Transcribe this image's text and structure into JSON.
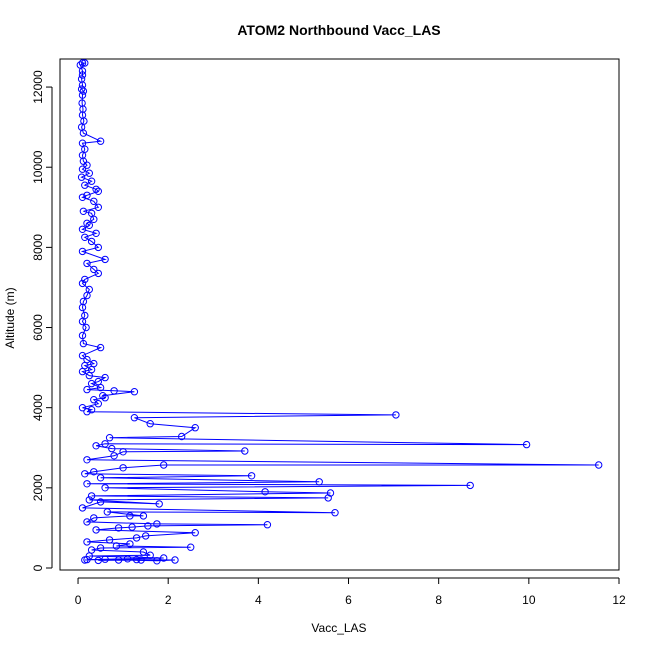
{
  "chart_data": {
    "type": "scatter",
    "title": "ATOM2 Northbound Vacc_LAS",
    "xlabel": "Vacc_LAS",
    "ylabel": "Altitude (m)",
    "xlim": [
      -0.4,
      12
    ],
    "ylim": [
      -50,
      12700
    ],
    "xticks": [
      0,
      2,
      4,
      6,
      8,
      10,
      12
    ],
    "yticks": [
      0,
      2000,
      4000,
      6000,
      8000,
      10000,
      12000
    ],
    "grid": false,
    "legend": "none",
    "color": "#0000ff",
    "series": [
      {
        "points": [
          [
            0.1,
            12600
          ],
          [
            0.15,
            12600
          ],
          [
            0.05,
            12550
          ],
          [
            0.1,
            12400
          ],
          [
            0.1,
            12300
          ],
          [
            0.08,
            12200
          ],
          [
            0.1,
            12050
          ],
          [
            0.08,
            11950
          ],
          [
            0.12,
            11900
          ],
          [
            0.1,
            11800
          ],
          [
            0.09,
            11600
          ],
          [
            0.11,
            11450
          ],
          [
            0.1,
            11300
          ],
          [
            0.13,
            11150
          ],
          [
            0.08,
            11000
          ],
          [
            0.12,
            10850
          ],
          [
            0.5,
            10650
          ],
          [
            0.1,
            10600
          ],
          [
            0.15,
            10450
          ],
          [
            0.1,
            10300
          ],
          [
            0.12,
            10150
          ],
          [
            0.2,
            10050
          ],
          [
            0.1,
            9950
          ],
          [
            0.25,
            9850
          ],
          [
            0.08,
            9750
          ],
          [
            0.3,
            9650
          ],
          [
            0.15,
            9550
          ],
          [
            0.4,
            9450
          ],
          [
            0.45,
            9400
          ],
          [
            0.2,
            9300
          ],
          [
            0.1,
            9250
          ],
          [
            0.35,
            9150
          ],
          [
            0.45,
            9000
          ],
          [
            0.12,
            8900
          ],
          [
            0.3,
            8850
          ],
          [
            0.35,
            8700
          ],
          [
            0.2,
            8600
          ],
          [
            0.25,
            8550
          ],
          [
            0.1,
            8450
          ],
          [
            0.4,
            8350
          ],
          [
            0.15,
            8250
          ],
          [
            0.3,
            8150
          ],
          [
            0.45,
            8000
          ],
          [
            0.1,
            7900
          ],
          [
            0.6,
            7700
          ],
          [
            0.2,
            7600
          ],
          [
            0.35,
            7450
          ],
          [
            0.45,
            7350
          ],
          [
            0.15,
            7200
          ],
          [
            0.1,
            7100
          ],
          [
            0.25,
            6950
          ],
          [
            0.2,
            6800
          ],
          [
            0.12,
            6650
          ],
          [
            0.1,
            6500
          ],
          [
            0.15,
            6300
          ],
          [
            0.1,
            6150
          ],
          [
            0.18,
            6000
          ],
          [
            0.1,
            5800
          ],
          [
            0.12,
            5600
          ],
          [
            0.5,
            5500
          ],
          [
            0.1,
            5300
          ],
          [
            0.2,
            5200
          ],
          [
            0.35,
            5100
          ],
          [
            0.15,
            5050
          ],
          [
            0.3,
            4950
          ],
          [
            0.1,
            4900
          ],
          [
            0.25,
            4800
          ],
          [
            0.6,
            4750
          ],
          [
            0.45,
            4650
          ],
          [
            0.3,
            4600
          ],
          [
            0.5,
            4500
          ],
          [
            0.2,
            4450
          ],
          [
            0.8,
            4420
          ],
          [
            1.25,
            4400
          ],
          [
            0.55,
            4300
          ],
          [
            0.6,
            4250
          ],
          [
            0.35,
            4200
          ],
          [
            0.45,
            4100
          ],
          [
            0.1,
            4000
          ],
          [
            0.3,
            3950
          ],
          [
            0.2,
            3900
          ],
          [
            7.05,
            3820
          ],
          [
            1.25,
            3750
          ],
          [
            1.6,
            3600
          ],
          [
            2.6,
            3500
          ],
          [
            2.3,
            3280
          ],
          [
            0.7,
            3250
          ],
          [
            9.95,
            3080
          ],
          [
            0.6,
            3100
          ],
          [
            0.4,
            3050
          ],
          [
            0.75,
            2980
          ],
          [
            3.7,
            2920
          ],
          [
            1.0,
            2900
          ],
          [
            0.8,
            2800
          ],
          [
            0.2,
            2700
          ],
          [
            11.55,
            2570
          ],
          [
            1.9,
            2570
          ],
          [
            1.0,
            2500
          ],
          [
            0.35,
            2400
          ],
          [
            0.15,
            2350
          ],
          [
            3.85,
            2300
          ],
          [
            0.5,
            2250
          ],
          [
            5.35,
            2150
          ],
          [
            0.2,
            2100
          ],
          [
            8.7,
            2060
          ],
          [
            0.6,
            2000
          ],
          [
            4.15,
            1900
          ],
          [
            5.6,
            1870
          ],
          [
            0.3,
            1800
          ],
          [
            5.55,
            1750
          ],
          [
            0.25,
            1700
          ],
          [
            1.8,
            1600
          ],
          [
            0.5,
            1650
          ],
          [
            0.1,
            1500
          ],
          [
            5.7,
            1380
          ],
          [
            0.65,
            1400
          ],
          [
            1.45,
            1300
          ],
          [
            1.15,
            1300
          ],
          [
            0.35,
            1250
          ],
          [
            0.2,
            1150
          ],
          [
            1.75,
            1100
          ],
          [
            4.2,
            1080
          ],
          [
            1.55,
            1050
          ],
          [
            1.2,
            1020
          ],
          [
            0.9,
            1000
          ],
          [
            0.4,
            950
          ],
          [
            2.6,
            880
          ],
          [
            1.5,
            800
          ],
          [
            1.3,
            750
          ],
          [
            0.7,
            700
          ],
          [
            0.2,
            650
          ],
          [
            1.15,
            600
          ],
          [
            0.85,
            550
          ],
          [
            2.5,
            520
          ],
          [
            0.5,
            500
          ],
          [
            0.3,
            450
          ],
          [
            1.45,
            400
          ],
          [
            1.6,
            320
          ],
          [
            0.25,
            300
          ],
          [
            1.9,
            250
          ],
          [
            1.1,
            230
          ],
          [
            0.2,
            210
          ],
          [
            1.4,
            200
          ],
          [
            0.45,
            190
          ],
          [
            0.9,
            200
          ],
          [
            1.75,
            180
          ],
          [
            2.15,
            200
          ],
          [
            1.3,
            210
          ],
          [
            0.6,
            220
          ],
          [
            0.15,
            200
          ]
        ]
      }
    ]
  }
}
